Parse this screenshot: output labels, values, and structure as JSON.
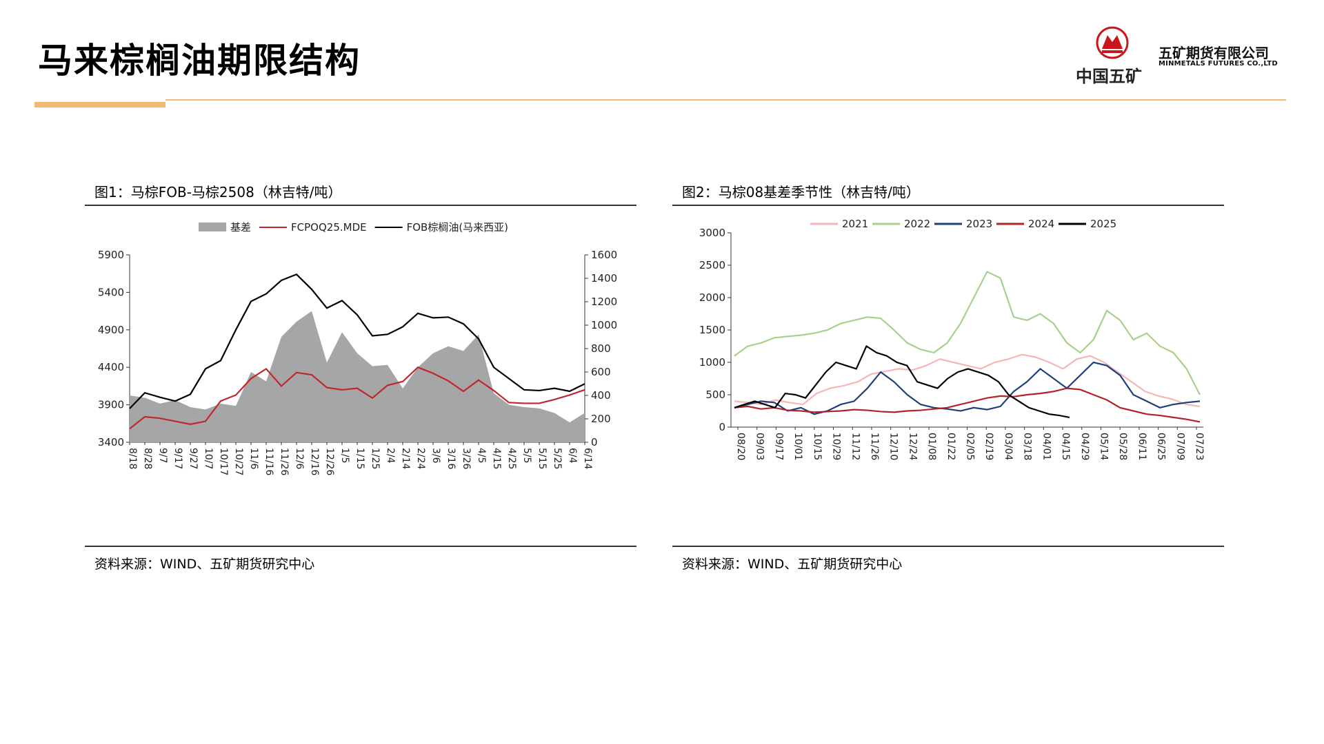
{
  "header": {
    "title": "马来棕榈油期限结构",
    "logo_caption": "中国五矿",
    "company_cn": "五矿期货有限公司",
    "company_en": "MINMETALS FUTURES CO.,LTD",
    "accent_color": "#f0b870",
    "logo_color": "#c8161d"
  },
  "panels": [
    {
      "title": "图1：马棕FOB-马棕2508（林吉特/吨）",
      "source": "资料来源：WIND、五矿期货研究中心"
    },
    {
      "title": "图2：马棕08基差季节性（林吉特/吨）",
      "source": "资料来源：WIND、五矿期货研究中心"
    }
  ],
  "chart_data": [
    {
      "type": "line",
      "legend": [
        {
          "name": "基差",
          "kind": "area",
          "color": "#a6a6a6"
        },
        {
          "name": "FCPOQ25.MDE",
          "kind": "line",
          "color": "#c0272d"
        },
        {
          "name": "FOB棕榈油(马来西亚)",
          "kind": "line",
          "color": "#000000"
        }
      ],
      "legend_position": "top",
      "categories": [
        "8/18",
        "8/28",
        "9/7",
        "9/17",
        "9/27",
        "10/7",
        "10/17",
        "10/27",
        "11/6",
        "11/16",
        "11/26",
        "12/6",
        "12/16",
        "12/26",
        "1/5",
        "1/15",
        "1/25",
        "2/4",
        "2/14",
        "2/24",
        "3/6",
        "3/16",
        "3/26",
        "4/5",
        "4/15",
        "4/25",
        "5/5",
        "5/15",
        "5/25",
        "6/4",
        "6/14"
      ],
      "left_axis": {
        "ylim": [
          3400,
          5900
        ],
        "ticks": [
          3400,
          3900,
          4400,
          4900,
          5400,
          5900
        ]
      },
      "right_axis": {
        "ylim": [
          0,
          1600
        ],
        "ticks": [
          0,
          200,
          400,
          600,
          800,
          1000,
          1200,
          1400,
          1600
        ]
      },
      "series": [
        {
          "name": "基差",
          "axis": "right",
          "type": "area",
          "color": "#a6a6a6",
          "values": [
            400,
            380,
            330,
            360,
            300,
            280,
            330,
            310,
            600,
            520,
            900,
            1030,
            1120,
            680,
            940,
            760,
            650,
            660,
            460,
            640,
            760,
            820,
            780,
            920,
            420,
            320,
            300,
            290,
            250,
            170,
            250
          ]
        },
        {
          "name": "FCPOQ25.MDE",
          "axis": "left",
          "type": "line",
          "color": "#c0272d",
          "values": [
            3580,
            3740,
            3720,
            3680,
            3640,
            3680,
            3950,
            4030,
            4250,
            4380,
            4150,
            4330,
            4300,
            4130,
            4100,
            4120,
            3990,
            4160,
            4210,
            4400,
            4320,
            4220,
            4080,
            4230,
            4090,
            3930,
            3920,
            3920,
            3970,
            4030,
            4100
          ]
        },
        {
          "name": "FOB棕榈油(马来西亚)",
          "axis": "left",
          "type": "line",
          "color": "#000000",
          "values": [
            3850,
            4060,
            4000,
            3950,
            4040,
            4380,
            4490,
            4900,
            5280,
            5380,
            5560,
            5640,
            5440,
            5190,
            5290,
            5100,
            4820,
            4840,
            4940,
            5120,
            5060,
            5070,
            4980,
            4780,
            4400,
            4250,
            4100,
            4090,
            4120,
            4080,
            4180
          ]
        }
      ]
    },
    {
      "type": "line",
      "legend_position": "top",
      "x_ticks": [
        "08/20",
        "09/03",
        "09/17",
        "10/01",
        "10/15",
        "10/29",
        "11/12",
        "11/26",
        "12/10",
        "12/24",
        "01/08",
        "01/22",
        "02/05",
        "02/19",
        "03/04",
        "03/18",
        "04/01",
        "04/15",
        "04/29",
        "05/14",
        "05/28",
        "06/11",
        "06/25",
        "07/09",
        "07/23"
      ],
      "ylim": [
        0,
        3000
      ],
      "y_ticks": [
        0,
        500,
        1000,
        1500,
        2000,
        2500,
        3000
      ],
      "series": [
        {
          "name": "2021",
          "color": "#f4b6b6",
          "values": [
            400,
            380,
            350,
            420,
            380,
            350,
            520,
            600,
            640,
            700,
            820,
            860,
            900,
            880,
            950,
            1050,
            1000,
            950,
            900,
            1000,
            1050,
            1120,
            1080,
            1000,
            900,
            1050,
            1100,
            1000,
            850,
            700,
            550,
            480,
            430,
            350,
            320
          ]
        },
        {
          "name": "2022",
          "color": "#a8d08d",
          "values": [
            1100,
            1250,
            1300,
            1380,
            1400,
            1420,
            1450,
            1500,
            1600,
            1650,
            1700,
            1680,
            1500,
            1300,
            1200,
            1150,
            1300,
            1600,
            2000,
            2400,
            2300,
            1700,
            1650,
            1750,
            1600,
            1300,
            1150,
            1350,
            1800,
            1650,
            1350,
            1450,
            1250,
            1150,
            900,
            500
          ]
        },
        {
          "name": "2023",
          "color": "#1f3f7a",
          "values": [
            300,
            350,
            400,
            380,
            250,
            300,
            200,
            250,
            350,
            400,
            600,
            850,
            700,
            500,
            350,
            300,
            280,
            250,
            300,
            270,
            320,
            550,
            700,
            900,
            750,
            600,
            800,
            1000,
            950,
            800,
            500,
            400,
            300,
            350,
            380,
            400
          ]
        },
        {
          "name": "2024",
          "color": "#b1222b",
          "values": [
            300,
            320,
            280,
            300,
            260,
            250,
            230,
            240,
            250,
            270,
            260,
            240,
            230,
            250,
            260,
            280,
            300,
            350,
            400,
            450,
            480,
            470,
            500,
            520,
            550,
            600,
            580,
            500,
            420,
            300,
            250,
            200,
            180,
            150,
            120,
            80
          ]
        },
        {
          "name": "2025",
          "color": "#000000",
          "values": [
            300,
            350,
            400,
            350,
            300,
            520,
            500,
            450,
            650,
            850,
            1000,
            950,
            900,
            1250,
            1150,
            1100,
            1000,
            950,
            700,
            650,
            600,
            750,
            850,
            900,
            850,
            800,
            700,
            500,
            400,
            300,
            250,
            200,
            180,
            150
          ]
        }
      ]
    }
  ]
}
